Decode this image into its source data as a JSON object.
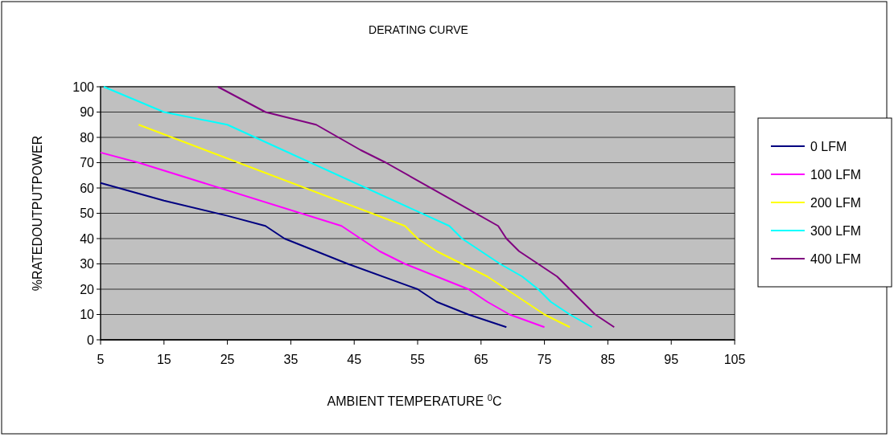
{
  "chart_data": {
    "type": "line",
    "title": "DERATING CURVE",
    "xlabel": "AMBIENT TEMPERATURE $^{0}$C",
    "ylabel": "%RATEDOUTPUTPOWER",
    "xlim": [
      5,
      105
    ],
    "xticks": [
      5,
      15,
      25,
      35,
      45,
      55,
      65,
      75,
      85,
      95,
      105
    ],
    "ylim": [
      0,
      100
    ],
    "yticks": [
      0,
      10,
      20,
      30,
      40,
      50,
      60,
      70,
      80,
      90,
      100
    ],
    "grid": "y",
    "legend": "right",
    "marker": "none",
    "line_style": "solid",
    "series": [
      {
        "name": "0 LFM",
        "color": "#000080",
        "x": [
          5,
          15,
          25,
          31,
          34,
          39,
          44,
          55,
          58,
          63,
          69
        ],
        "values": [
          62,
          55,
          49,
          45,
          40,
          35,
          30,
          20,
          15,
          10,
          5
        ]
      },
      {
        "name": "100 LFM",
        "color": "#ff00ff",
        "x": [
          5,
          11,
          43,
          46,
          49,
          53,
          63,
          66,
          69.5,
          75
        ],
        "values": [
          74,
          70,
          45,
          40,
          35,
          30,
          20,
          15,
          10,
          5
        ]
      },
      {
        "name": "200 LFM",
        "color": "#ffff00",
        "x": [
          11,
          53,
          55,
          58,
          62,
          66,
          69,
          72,
          75,
          79
        ],
        "values": [
          85,
          45,
          40,
          35,
          30,
          25,
          20,
          15,
          10,
          5
        ]
      },
      {
        "name": "300 LFM",
        "color": "#00ffff",
        "x": [
          5.5,
          15,
          25,
          60,
          62,
          65,
          68,
          71.5,
          74,
          76,
          79,
          82.5
        ],
        "values": [
          100,
          90,
          85,
          45,
          40,
          35,
          30,
          25,
          20,
          15,
          10,
          5
        ]
      },
      {
        "name": "400 LFM",
        "color": "#800080",
        "x": [
          23.5,
          31,
          39,
          46,
          50,
          67.7,
          69,
          71,
          74,
          77,
          79,
          81,
          83,
          86
        ],
        "values": [
          100,
          90,
          85,
          75,
          70,
          45,
          40,
          35,
          30,
          25,
          20,
          15,
          10,
          5
        ]
      }
    ]
  }
}
